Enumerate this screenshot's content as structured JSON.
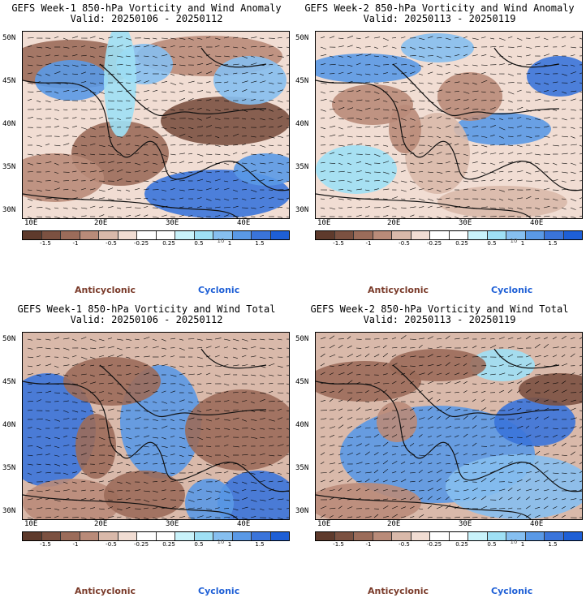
{
  "colors": {
    "scale": [
      "#5e3a2c",
      "#7b5141",
      "#9b6c5a",
      "#b98b79",
      "#d9b9aa",
      "#f1ddd3",
      "#ffffff",
      "#ffffff",
      "#c9f3fb",
      "#9fe0f5",
      "#86bff0",
      "#5a99e6",
      "#3a74da",
      "#1e5fd6"
    ],
    "anticyclonic": "#7a3b2a",
    "cyclonic": "#1e5fd6"
  },
  "lat_labels": [
    "50N",
    "45N",
    "40N",
    "35N",
    "30N"
  ],
  "lon_labels": [
    "10E",
    "20E",
    "30E",
    "40E"
  ],
  "colorbar_labels": [
    "-1.5",
    "-1",
    "-0.5",
    "-0.25",
    "0.25",
    "0.5",
    "1",
    "1.5"
  ],
  "colorbar_unit": "10",
  "legend": {
    "anticyclonic": "Anticyclonic",
    "cyclonic": "Cyclonic"
  },
  "panels": [
    {
      "title": "GEFS Week-1 850-hPa Vorticity and Wind Anomaly",
      "valid": "Valid: 20250106 - 20250112",
      "mode": "anomaly1"
    },
    {
      "title": "GEFS Week-2 850-hPa Vorticity and Wind Anomaly",
      "valid": "Valid: 20250113 - 20250119",
      "mode": "anomaly2"
    },
    {
      "title": "GEFS Week-1 850-hPa Vorticity and Wind Total",
      "valid": "Valid: 20250106 - 20250112",
      "mode": "total1"
    },
    {
      "title": "GEFS Week-2 850-hPa Vorticity and Wind Total",
      "valid": "Valid: 20250113 - 20250119",
      "mode": "total2"
    }
  ]
}
